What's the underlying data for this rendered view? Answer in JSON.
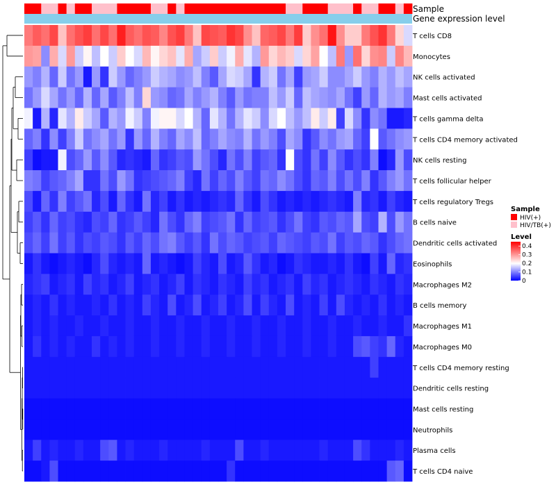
{
  "chart_data": {
    "type": "heatmap",
    "rows": [
      "T cells CD8",
      "Monocytes",
      "NK cells activated",
      "Mast cells activated",
      "T cells gamma delta",
      "T cells CD4 memory activated",
      "NK cells resting",
      "T cells follicular helper",
      "T cells regulatory  Tregs",
      "B cells naive",
      "Dendritic cells activated",
      "Eosinophils",
      "Macrophages M2",
      "B cells memory",
      "Macrophages M1",
      "Macrophages M0",
      "T cells CD4 memory resting",
      "Dendritic cells resting",
      "Mast cells resting",
      "Neutrophils",
      "Plasma cells",
      "T cells CD4 naive"
    ],
    "n_columns": 46,
    "sample_groups": [
      "HIV(+)",
      "HIV(+)",
      "HIV/TB(+)",
      "HIV/TB(+)",
      "HIV(+)",
      "HIV/TB(+)",
      "HIV(+)",
      "HIV(+)",
      "HIV/TB(+)",
      "HIV/TB(+)",
      "HIV/TB(+)",
      "HIV(+)",
      "HIV(+)",
      "HIV(+)",
      "HIV(+)",
      "HIV/TB(+)",
      "HIV/TB(+)",
      "HIV(+)",
      "HIV/TB(+)",
      "HIV(+)",
      "HIV(+)",
      "HIV(+)",
      "HIV(+)",
      "HIV(+)",
      "HIV(+)",
      "HIV(+)",
      "HIV(+)",
      "HIV(+)",
      "HIV(+)",
      "HIV(+)",
      "HIV(+)",
      "HIV/TB(+)",
      "HIV/TB(+)",
      "HIV(+)",
      "HIV(+)",
      "HIV(+)",
      "HIV/TB(+)",
      "HIV/TB(+)",
      "HIV/TB(+)",
      "HIV(+)",
      "HIV/TB(+)",
      "HIV/TB(+)",
      "HIV(+)",
      "HIV(+)",
      "HIV/TB(+)",
      "HIV(+)"
    ],
    "values": [
      [
        0.33,
        0.36,
        0.34,
        0.38,
        0.26,
        0.34,
        0.37,
        0.39,
        0.34,
        0.38,
        0.34,
        0.42,
        0.36,
        0.34,
        0.37,
        0.36,
        0.32,
        0.37,
        0.39,
        0.33,
        0.26,
        0.38,
        0.37,
        0.36,
        0.4,
        0.38,
        0.31,
        0.26,
        0.35,
        0.36,
        0.38,
        0.33,
        0.39,
        0.25,
        0.31,
        0.34,
        0.43,
        0.31,
        0.25,
        0.25,
        0.33,
        0.37,
        0.4,
        0.33,
        0.24,
        0.17
      ],
      [
        0.3,
        0.29,
        0.11,
        0.28,
        0.17,
        0.3,
        0.16,
        0.21,
        0.15,
        0.2,
        0.16,
        0.25,
        0.2,
        0.17,
        0.27,
        0.21,
        0.24,
        0.26,
        0.18,
        0.28,
        0.13,
        0.16,
        0.25,
        0.16,
        0.19,
        0.28,
        0.18,
        0.14,
        0.3,
        0.24,
        0.27,
        0.25,
        0.17,
        0.24,
        0.29,
        0.2,
        0.15,
        0.33,
        0.12,
        0.34,
        0.24,
        0.31,
        0.32,
        0.16,
        0.32,
        0.27
      ],
      [
        0.12,
        0.1,
        0.14,
        0.08,
        0.16,
        0.09,
        0.12,
        0.02,
        0.12,
        0.04,
        0.16,
        0.12,
        0.08,
        0.1,
        0.12,
        0.16,
        0.14,
        0.13,
        0.11,
        0.12,
        0.15,
        0.1,
        0.07,
        0.13,
        0.17,
        0.16,
        0.13,
        0.04,
        0.14,
        0.16,
        0.09,
        0.13,
        0.05,
        0.12,
        0.13,
        0.16,
        0.11,
        0.11,
        0.13,
        0.16,
        0.12,
        0.1,
        0.14,
        0.12,
        0.15,
        0.13
      ],
      [
        0.09,
        0.12,
        0.17,
        0.13,
        0.09,
        0.12,
        0.08,
        0.14,
        0.08,
        0.13,
        0.07,
        0.1,
        0.15,
        0.1,
        0.24,
        0.12,
        0.11,
        0.08,
        0.09,
        0.13,
        0.1,
        0.12,
        0.14,
        0.1,
        0.07,
        0.12,
        0.09,
        0.1,
        0.1,
        0.15,
        0.12,
        0.16,
        0.08,
        0.15,
        0.13,
        0.12,
        0.11,
        0.13,
        0.09,
        0.05,
        0.12,
        0.08,
        0.14,
        0.12,
        0.13,
        0.1
      ],
      [
        0.19,
        0.02,
        0.14,
        0.03,
        0.18,
        0.14,
        0.22,
        0.16,
        0.13,
        0.07,
        0.14,
        0.12,
        0.19,
        0.16,
        0.1,
        0.19,
        0.21,
        0.21,
        0.17,
        0.2,
        0.14,
        0.08,
        0.18,
        0.14,
        0.09,
        0.14,
        0.18,
        0.16,
        0.11,
        0.17,
        0.2,
        0.15,
        0.12,
        0.15,
        0.22,
        0.16,
        0.22,
        0.05,
        0.17,
        0.11,
        0.04,
        0.11,
        0.09,
        0.02,
        0.02,
        0.03
      ],
      [
        0.08,
        0.1,
        0.04,
        0.11,
        0.05,
        0.1,
        0.16,
        0.09,
        0.11,
        0.13,
        0.09,
        0.12,
        0.04,
        0.12,
        0.08,
        0.14,
        0.1,
        0.08,
        0.13,
        0.11,
        0.15,
        0.08,
        0.1,
        0.13,
        0.11,
        0.1,
        0.14,
        0.09,
        0.12,
        0.1,
        0.06,
        0.13,
        0.11,
        0.04,
        0.07,
        0.11,
        0.09,
        0.12,
        0.13,
        0.08,
        0.05,
        0.2,
        0.07,
        0.09,
        0.11,
        0.12
      ],
      [
        0.05,
        0.01,
        0.02,
        0.02,
        0.19,
        0.06,
        0.08,
        0.12,
        0.07,
        0.11,
        0.07,
        0.03,
        0.04,
        0.03,
        0.02,
        0.08,
        0.04,
        0.05,
        0.07,
        0.06,
        0.12,
        0.09,
        0.06,
        0.03,
        0.09,
        0.06,
        0.1,
        0.05,
        0.07,
        0.08,
        0.04,
        0.2,
        0.06,
        0.04,
        0.09,
        0.05,
        0.11,
        0.07,
        0.04,
        0.06,
        0.04,
        0.1,
        0.01,
        0.03,
        0.12,
        0.06
      ],
      [
        0.1,
        0.09,
        0.05,
        0.07,
        0.08,
        0.1,
        0.13,
        0.04,
        0.04,
        0.09,
        0.06,
        0.12,
        0.09,
        0.04,
        0.05,
        0.06,
        0.07,
        0.08,
        0.1,
        0.05,
        0.03,
        0.09,
        0.05,
        0.08,
        0.06,
        0.1,
        0.07,
        0.05,
        0.09,
        0.08,
        0.11,
        0.09,
        0.06,
        0.04,
        0.08,
        0.07,
        0.1,
        0.06,
        0.09,
        0.06,
        0.1,
        0.04,
        0.07,
        0.1,
        0.12,
        0.09
      ],
      [
        0.06,
        0.02,
        0.08,
        0.04,
        0.1,
        0.05,
        0.07,
        0.09,
        0.03,
        0.06,
        0.02,
        0.08,
        0.04,
        0.02,
        0.09,
        0.03,
        0.05,
        0.02,
        0.04,
        0.02,
        0.03,
        0.02,
        0.03,
        0.04,
        0.03,
        0.08,
        0.04,
        0.02,
        0.06,
        0.04,
        0.02,
        0.03,
        0.02,
        0.03,
        0.02,
        0.03,
        0.04,
        0.03,
        0.02,
        0.1,
        0.03,
        0.04,
        0.02,
        0.05,
        0.03,
        0.02
      ],
      [
        0.05,
        0.07,
        0.04,
        0.08,
        0.05,
        0.06,
        0.04,
        0.03,
        0.06,
        0.05,
        0.08,
        0.04,
        0.05,
        0.07,
        0.05,
        0.03,
        0.09,
        0.06,
        0.04,
        0.08,
        0.1,
        0.05,
        0.06,
        0.07,
        0.09,
        0.04,
        0.08,
        0.05,
        0.06,
        0.07,
        0.04,
        0.06,
        0.09,
        0.05,
        0.04,
        0.07,
        0.06,
        0.08,
        0.07,
        0.13,
        0.06,
        0.05,
        0.14,
        0.06,
        0.12,
        0.09
      ],
      [
        0.06,
        0.08,
        0.05,
        0.09,
        0.05,
        0.07,
        0.04,
        0.06,
        0.05,
        0.07,
        0.06,
        0.04,
        0.07,
        0.05,
        0.08,
        0.06,
        0.09,
        0.1,
        0.07,
        0.05,
        0.07,
        0.04,
        0.09,
        0.06,
        0.08,
        0.07,
        0.05,
        0.06,
        0.07,
        0.05,
        0.08,
        0.07,
        0.06,
        0.05,
        0.07,
        0.06,
        0.09,
        0.05,
        0.07,
        0.06,
        0.08,
        0.07,
        0.04,
        0.06,
        0.08,
        0.09
      ],
      [
        0.02,
        0.04,
        0.02,
        0.01,
        0.02,
        0.03,
        0.02,
        0.01,
        0.03,
        0.06,
        0.03,
        0.02,
        0.03,
        0.02,
        0.08,
        0.02,
        0.03,
        0.02,
        0.01,
        0.02,
        0.05,
        0.03,
        0.02,
        0.06,
        0.02,
        0.03,
        0.07,
        0.04,
        0.02,
        0.03,
        0.01,
        0.02,
        0.04,
        0.03,
        0.02,
        0.02,
        0.03,
        0.02,
        0.04,
        0.02,
        0.01,
        0.05,
        0.02,
        0.08,
        0.03,
        0.04
      ],
      [
        0.03,
        0.04,
        0.05,
        0.02,
        0.03,
        0.04,
        0.02,
        0.05,
        0.03,
        0.04,
        0.02,
        0.03,
        0.05,
        0.02,
        0.03,
        0.04,
        0.02,
        0.03,
        0.05,
        0.02,
        0.04,
        0.03,
        0.02,
        0.04,
        0.03,
        0.02,
        0.05,
        0.03,
        0.04,
        0.02,
        0.03,
        0.04,
        0.02,
        0.05,
        0.03,
        0.04,
        0.02,
        0.03,
        0.04,
        0.03,
        0.02,
        0.04,
        0.03,
        0.02,
        0.04,
        0.03
      ],
      [
        0.02,
        0.03,
        0.02,
        0.04,
        0.02,
        0.03,
        0.02,
        0.02,
        0.03,
        0.02,
        0.04,
        0.02,
        0.03,
        0.02,
        0.05,
        0.03,
        0.02,
        0.06,
        0.02,
        0.03,
        0.06,
        0.02,
        0.03,
        0.05,
        0.02,
        0.03,
        0.06,
        0.02,
        0.05,
        0.03,
        0.02,
        0.06,
        0.02,
        0.03,
        0.02,
        0.05,
        0.02,
        0.06,
        0.03,
        0.02,
        0.03,
        0.02,
        0.04,
        0.02,
        0.03,
        0.02
      ],
      [
        0.02,
        0.03,
        0.02,
        0.03,
        0.02,
        0.02,
        0.03,
        0.02,
        0.02,
        0.03,
        0.02,
        0.02,
        0.03,
        0.02,
        0.02,
        0.03,
        0.02,
        0.02,
        0.03,
        0.02,
        0.02,
        0.03,
        0.02,
        0.02,
        0.03,
        0.02,
        0.02,
        0.03,
        0.02,
        0.02,
        0.03,
        0.02,
        0.02,
        0.03,
        0.02,
        0.02,
        0.03,
        0.02,
        0.02,
        0.03,
        0.02,
        0.02,
        0.03,
        0.02,
        0.02,
        0.04
      ],
      [
        0.02,
        0.04,
        0.02,
        0.03,
        0.02,
        0.03,
        0.02,
        0.02,
        0.04,
        0.02,
        0.03,
        0.02,
        0.03,
        0.02,
        0.02,
        0.03,
        0.02,
        0.02,
        0.03,
        0.02,
        0.02,
        0.03,
        0.02,
        0.02,
        0.03,
        0.02,
        0.02,
        0.03,
        0.02,
        0.02,
        0.03,
        0.02,
        0.02,
        0.03,
        0.02,
        0.02,
        0.03,
        0.02,
        0.02,
        0.06,
        0.07,
        0.05,
        0.04,
        0.08,
        0.03,
        0.02
      ],
      [
        0.02,
        0.02,
        0.02,
        0.02,
        0.02,
        0.02,
        0.02,
        0.02,
        0.02,
        0.02,
        0.02,
        0.02,
        0.02,
        0.02,
        0.02,
        0.02,
        0.02,
        0.02,
        0.02,
        0.02,
        0.02,
        0.02,
        0.02,
        0.02,
        0.02,
        0.02,
        0.02,
        0.02,
        0.02,
        0.02,
        0.02,
        0.02,
        0.02,
        0.02,
        0.02,
        0.02,
        0.02,
        0.02,
        0.02,
        0.02,
        0.02,
        0.05,
        0.02,
        0.02,
        0.02,
        0.02
      ],
      [
        0.02,
        0.02,
        0.02,
        0.02,
        0.02,
        0.02,
        0.02,
        0.02,
        0.02,
        0.02,
        0.02,
        0.02,
        0.02,
        0.02,
        0.02,
        0.02,
        0.02,
        0.02,
        0.02,
        0.02,
        0.02,
        0.02,
        0.02,
        0.02,
        0.02,
        0.02,
        0.02,
        0.02,
        0.02,
        0.02,
        0.02,
        0.02,
        0.02,
        0.02,
        0.02,
        0.02,
        0.02,
        0.02,
        0.02,
        0.02,
        0.02,
        0.02,
        0.02,
        0.02,
        0.02,
        0.02
      ],
      [
        0.01,
        0.01,
        0.01,
        0.01,
        0.01,
        0.01,
        0.01,
        0.01,
        0.01,
        0.01,
        0.01,
        0.01,
        0.01,
        0.01,
        0.01,
        0.01,
        0.01,
        0.01,
        0.01,
        0.01,
        0.01,
        0.01,
        0.01,
        0.01,
        0.01,
        0.01,
        0.01,
        0.01,
        0.01,
        0.01,
        0.01,
        0.01,
        0.01,
        0.01,
        0.01,
        0.01,
        0.01,
        0.01,
        0.01,
        0.01,
        0.01,
        0.01,
        0.01,
        0.01,
        0.01,
        0.01
      ],
      [
        0.01,
        0.01,
        0.01,
        0.01,
        0.01,
        0.01,
        0.01,
        0.01,
        0.01,
        0.01,
        0.01,
        0.01,
        0.01,
        0.01,
        0.01,
        0.01,
        0.01,
        0.01,
        0.01,
        0.01,
        0.01,
        0.01,
        0.01,
        0.01,
        0.01,
        0.01,
        0.01,
        0.01,
        0.01,
        0.01,
        0.01,
        0.01,
        0.01,
        0.01,
        0.01,
        0.01,
        0.01,
        0.01,
        0.01,
        0.01,
        0.01,
        0.01,
        0.01,
        0.01,
        0.01,
        0.01
      ],
      [
        0.02,
        0.05,
        0.02,
        0.03,
        0.02,
        0.02,
        0.03,
        0.02,
        0.02,
        0.06,
        0.07,
        0.02,
        0.03,
        0.02,
        0.02,
        0.02,
        0.03,
        0.02,
        0.02,
        0.02,
        0.02,
        0.03,
        0.02,
        0.02,
        0.02,
        0.06,
        0.02,
        0.02,
        0.03,
        0.02,
        0.02,
        0.02,
        0.02,
        0.02,
        0.02,
        0.03,
        0.02,
        0.02,
        0.02,
        0.06,
        0.04,
        0.02,
        0.02,
        0.02,
        0.03,
        0.02
      ],
      [
        0.01,
        0.01,
        0.02,
        0.06,
        0.01,
        0.01,
        0.01,
        0.01,
        0.01,
        0.01,
        0.01,
        0.01,
        0.01,
        0.01,
        0.01,
        0.01,
        0.01,
        0.01,
        0.01,
        0.01,
        0.01,
        0.01,
        0.01,
        0.01,
        0.04,
        0.01,
        0.01,
        0.01,
        0.01,
        0.01,
        0.01,
        0.01,
        0.01,
        0.01,
        0.01,
        0.01,
        0.01,
        0.01,
        0.01,
        0.01,
        0.01,
        0.01,
        0.01,
        0.07,
        0.08,
        0.01
      ]
    ],
    "annotation_label_sample": "Sample",
    "annotation_label_level": "Gene expression level",
    "legend_sample_title": "Sample",
    "legend_sample_entries": [
      {
        "label": "HIV(+)",
        "color": "#ff0000"
      },
      {
        "label": "HIV/TB(+)",
        "color": "#ffc0cb"
      }
    ],
    "legend_level_title": "Level",
    "legend_level_ticks": [
      "0.4",
      "0.3",
      "0.2",
      "0.1",
      "0"
    ],
    "scale": {
      "min": 0,
      "mid": 0.2,
      "max": 0.45
    },
    "colors": {
      "low": "#0000ff",
      "mid": "#ffffff",
      "high": "#ff0000",
      "level_bar": "#87ceeb",
      "dendrogram": "#000000"
    }
  }
}
